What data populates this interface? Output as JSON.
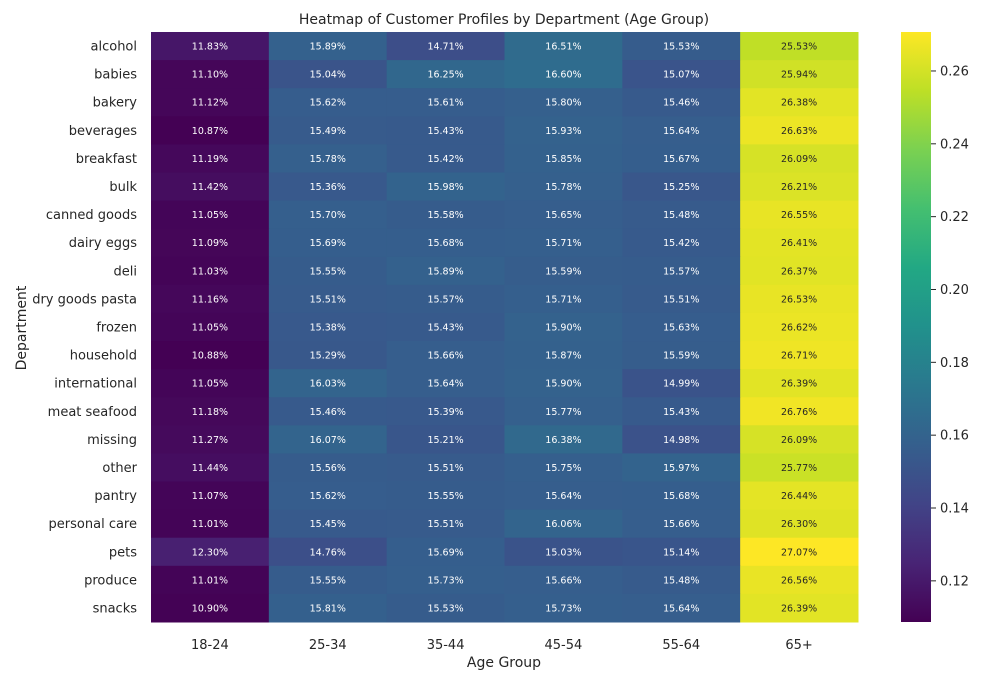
{
  "chart_data": {
    "type": "heatmap",
    "title": "Heatmap of Customer Profiles by Department (Age Group)",
    "xlabel": "Age Group",
    "ylabel": "Department",
    "colormap": "viridis",
    "value_format": "percent_2dp",
    "colorbar": {
      "vmin": 0.1087,
      "vmax": 0.2707,
      "ticks": [
        0.12,
        0.14,
        0.16,
        0.18,
        0.2,
        0.22,
        0.24,
        0.26
      ],
      "tick_labels": [
        "0.12",
        "0.14",
        "0.16",
        "0.18",
        "0.20",
        "0.22",
        "0.24",
        "0.26"
      ]
    },
    "columns": [
      "18-24",
      "25-34",
      "35-44",
      "45-54",
      "55-64",
      "65+"
    ],
    "rows": [
      "alcohol",
      "babies",
      "bakery",
      "beverages",
      "breakfast",
      "bulk",
      "canned goods",
      "dairy eggs",
      "deli",
      "dry goods pasta",
      "frozen",
      "household",
      "international",
      "meat seafood",
      "missing",
      "other",
      "pantry",
      "personal care",
      "pets",
      "produce",
      "snacks"
    ],
    "values": [
      [
        0.1183,
        0.1589,
        0.1471,
        0.1651,
        0.1553,
        0.2553
      ],
      [
        0.111,
        0.1504,
        0.1625,
        0.166,
        0.1507,
        0.2594
      ],
      [
        0.1112,
        0.1562,
        0.1561,
        0.158,
        0.1546,
        0.2638
      ],
      [
        0.1087,
        0.1549,
        0.1543,
        0.1593,
        0.1564,
        0.2663
      ],
      [
        0.1119,
        0.1578,
        0.1542,
        0.1585,
        0.1567,
        0.2609
      ],
      [
        0.1142,
        0.1536,
        0.1598,
        0.1578,
        0.1525,
        0.2621
      ],
      [
        0.1105,
        0.157,
        0.1558,
        0.1565,
        0.1548,
        0.2655
      ],
      [
        0.1109,
        0.1569,
        0.1568,
        0.1571,
        0.1542,
        0.2641
      ],
      [
        0.1103,
        0.1555,
        0.1589,
        0.1559,
        0.1557,
        0.2637
      ],
      [
        0.1116,
        0.1551,
        0.1557,
        0.1571,
        0.1551,
        0.2653
      ],
      [
        0.1105,
        0.1538,
        0.1543,
        0.159,
        0.1563,
        0.2662
      ],
      [
        0.1088,
        0.1529,
        0.1566,
        0.1587,
        0.1559,
        0.2671
      ],
      [
        0.1105,
        0.1603,
        0.1564,
        0.159,
        0.1499,
        0.2639
      ],
      [
        0.1118,
        0.1546,
        0.1539,
        0.1577,
        0.1543,
        0.2676
      ],
      [
        0.1127,
        0.1607,
        0.1521,
        0.1638,
        0.1498,
        0.2609
      ],
      [
        0.1144,
        0.1556,
        0.1551,
        0.1575,
        0.1597,
        0.2577
      ],
      [
        0.1107,
        0.1562,
        0.1555,
        0.1564,
        0.1568,
        0.2644
      ],
      [
        0.1101,
        0.1545,
        0.1551,
        0.1606,
        0.1566,
        0.263
      ],
      [
        0.123,
        0.1476,
        0.1569,
        0.1503,
        0.1514,
        0.2707
      ],
      [
        0.1101,
        0.1555,
        0.1573,
        0.1566,
        0.1548,
        0.2656
      ],
      [
        0.109,
        0.1581,
        0.1553,
        0.1573,
        0.1564,
        0.2639
      ]
    ]
  }
}
